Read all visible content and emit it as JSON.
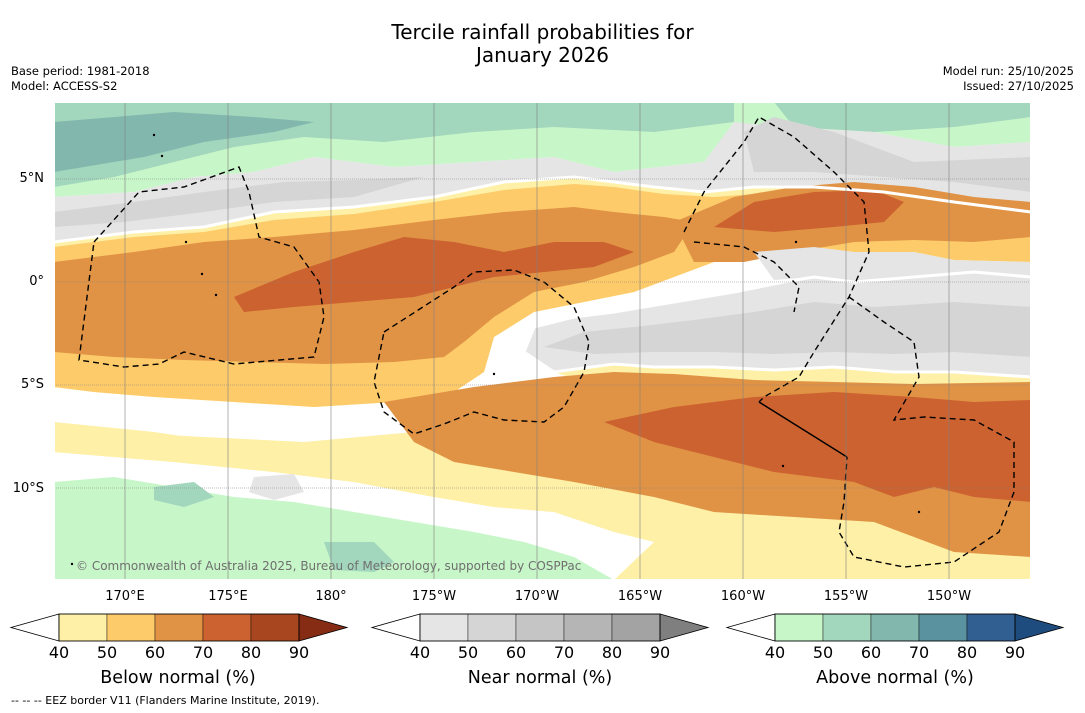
{
  "title_line1": "Tercile rainfall probabilities for",
  "title_line2": "January 2026",
  "base_period": "Base period: 1981-2018",
  "model": "Model: ACCESS-S2",
  "model_run": "Model run: 25/10/2025",
  "issued": "Issued: 27/10/2025",
  "copyright": "© Commonwealth of Australia 2025, Bureau of Meteorology, supported by COSPPac",
  "lat_labels": [
    "5°N",
    "0°",
    "5°S",
    "10°S"
  ],
  "lon_labels": [
    "170°E",
    "175°E",
    "180°",
    "175°W",
    "170°W",
    "165°W",
    "160°W",
    "155°W",
    "150°W"
  ],
  "colorbars": [
    {
      "label": "Below normal (%)",
      "ticks": [
        "40",
        "50",
        "60",
        "70",
        "80",
        "90"
      ],
      "colors": [
        "#fef0a6",
        "#fdcb6a",
        "#e09345",
        "#cc6230",
        "#a8471f"
      ],
      "extend_color": "#862c14"
    },
    {
      "label": "Near normal (%)",
      "ticks": [
        "40",
        "50",
        "60",
        "70",
        "80",
        "90"
      ],
      "colors": [
        "#e5e5e5",
        "#d5d5d5",
        "#c5c5c5",
        "#b5b5b5",
        "#a3a3a3"
      ],
      "extend_color": "#7f7f7f"
    },
    {
      "label": "Above normal (%)",
      "ticks": [
        "40",
        "50",
        "60",
        "70",
        "80",
        "90"
      ],
      "colors": [
        "#c7f6c8",
        "#a2d6bd",
        "#82b7ad",
        "#5a92a0",
        "#325f91"
      ],
      "extend_color": "#1f4c7f"
    }
  ],
  "footnote": "--  --  -- EEZ border V11 (Flanders Marine Institute, 2019)."
}
